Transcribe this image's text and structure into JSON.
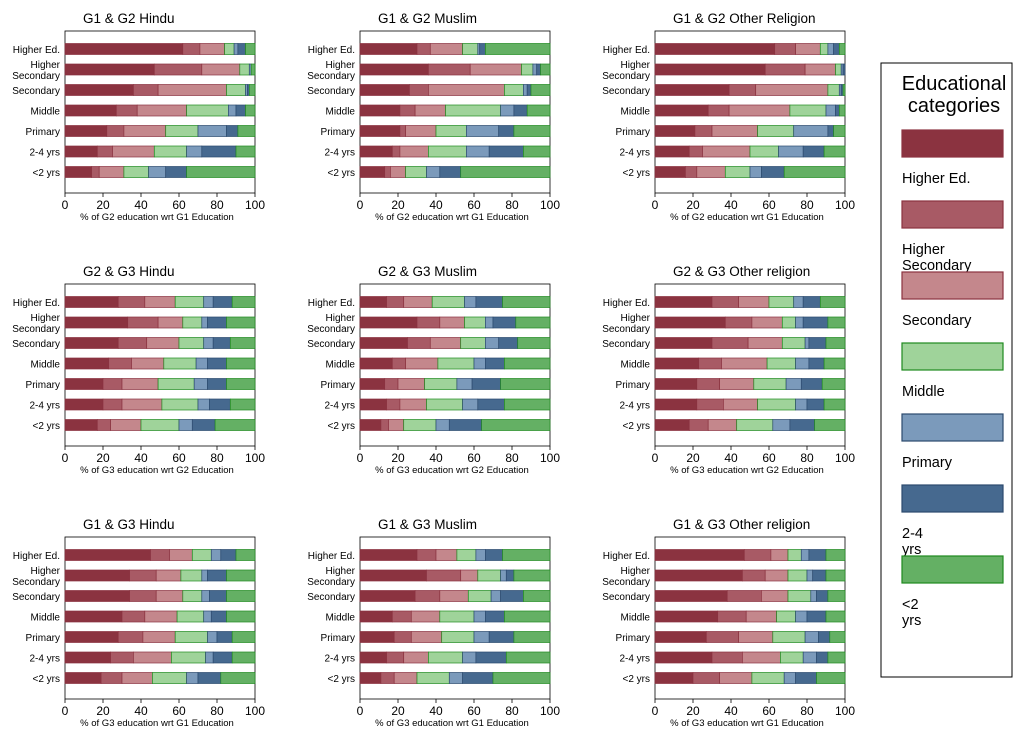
{
  "legend": {
    "title": "Educational\ncategories",
    "items": [
      {
        "label": "Higher Ed.",
        "color": "#8b3340",
        "stroke": "#8b3340"
      },
      {
        "label": "Higher\nSecondary",
        "color": "#a85a65",
        "stroke": "#8b3340"
      },
      {
        "label": "Secondary",
        "color": "#c4878c",
        "stroke": "#8b3340"
      },
      {
        "label": "Middle",
        "color": "#9fd39a",
        "stroke": "#1e8a1e"
      },
      {
        "label": "Primary",
        "color": "#7b9abb",
        "stroke": "#2c4a6e"
      },
      {
        "label": "2-4\nyrs",
        "color": "#46698f",
        "stroke": "#2c4a6e"
      },
      {
        "label": "<2\nyrs",
        "color": "#64b064",
        "stroke": "#1e8a1e"
      }
    ]
  },
  "chart_data": [
    {
      "type": "bar",
      "title": "G1 & G2 Hindu",
      "xlabel": "% of G2 education wrt G1 Education",
      "xlim": [
        0,
        100
      ],
      "xticks": [
        0,
        20,
        40,
        60,
        80,
        100
      ],
      "categories": [
        "Higher Ed.",
        "Higher\nSecondary",
        "Secondary",
        "Middle",
        "Primary",
        "2-4 yrs",
        "<2 yrs"
      ],
      "rows": [
        [
          62,
          9,
          13,
          5,
          2,
          4,
          5
        ],
        [
          47,
          25,
          20,
          5,
          1,
          0,
          2
        ],
        [
          36,
          13,
          36,
          10,
          1,
          1,
          3
        ],
        [
          27,
          11,
          26,
          22,
          4,
          5,
          5
        ],
        [
          22,
          9,
          22,
          17,
          15,
          6,
          9
        ],
        [
          17,
          8,
          22,
          17,
          8,
          18,
          10
        ],
        [
          14,
          4,
          13,
          13,
          9,
          11,
          36
        ]
      ]
    },
    {
      "type": "bar",
      "title": "G1 & G2 Muslim",
      "xlabel": "% of G2 education wrt G1 Education",
      "xlim": [
        0,
        100
      ],
      "xticks": [
        0,
        20,
        40,
        60,
        80,
        100
      ],
      "categories": [
        "Higher Ed.",
        "Higher\nSecondary",
        "Secondary",
        "Middle",
        "Primary",
        "2-4 yrs",
        "<2 yrs"
      ],
      "rows": [
        [
          30,
          7,
          17,
          8,
          1,
          3,
          34
        ],
        [
          36,
          22,
          27,
          6,
          2,
          2,
          5
        ],
        [
          26,
          10,
          40,
          10,
          2,
          2,
          10
        ],
        [
          21,
          8,
          16,
          29,
          7,
          7,
          12
        ],
        [
          21,
          3,
          16,
          16,
          17,
          8,
          19
        ],
        [
          17,
          4,
          15,
          20,
          12,
          18,
          14
        ],
        [
          13,
          3,
          8,
          11,
          7,
          11,
          47
        ]
      ]
    },
    {
      "type": "bar",
      "title": "G1 & G2 Other Religion",
      "xlabel": "% of G2 education wrt G1 Education",
      "xlim": [
        0,
        100
      ],
      "xticks": [
        0,
        20,
        40,
        60,
        80,
        100
      ],
      "categories": [
        "Higher Ed.",
        "Higher\nSecondary",
        "Secondary",
        "Middle",
        "Primary",
        "2-4 yrs",
        "<2 yrs"
      ],
      "rows": [
        [
          63,
          11,
          13,
          4,
          3,
          3,
          3
        ],
        [
          58,
          21,
          16,
          3,
          1,
          1,
          0
        ],
        [
          39,
          14,
          38,
          6,
          1,
          1,
          1
        ],
        [
          28,
          11,
          32,
          19,
          5,
          2,
          3
        ],
        [
          21,
          9,
          24,
          19,
          18,
          3,
          6
        ],
        [
          18,
          7,
          25,
          15,
          13,
          11,
          11
        ],
        [
          16,
          6,
          15,
          13,
          6,
          12,
          32
        ]
      ]
    },
    {
      "type": "bar",
      "title": "G2 & G3 Hindu",
      "xlabel": "% of G3 education wrt G2 Education",
      "xlim": [
        0,
        100
      ],
      "xticks": [
        0,
        20,
        40,
        60,
        80,
        100
      ],
      "categories": [
        "Higher Ed.",
        "Higher\nSecondary",
        "Secondary",
        "Middle",
        "Primary",
        "2-4 yrs",
        "<2 yrs"
      ],
      "rows": [
        [
          28,
          14,
          16,
          15,
          5,
          10,
          12
        ],
        [
          33,
          16,
          13,
          10,
          3,
          10,
          15
        ],
        [
          28,
          15,
          17,
          13,
          5,
          9,
          13
        ],
        [
          23,
          12,
          17,
          17,
          6,
          10,
          15
        ],
        [
          20,
          10,
          19,
          19,
          7,
          10,
          15
        ],
        [
          20,
          10,
          21,
          19,
          6,
          11,
          13
        ],
        [
          17,
          7,
          16,
          20,
          7,
          12,
          21
        ]
      ]
    },
    {
      "type": "bar",
      "title": "G2 & G3 Muslim",
      "xlabel": "% of G3 education wrt G2 Education",
      "xlim": [
        0,
        100
      ],
      "xticks": [
        0,
        20,
        40,
        60,
        80,
        100
      ],
      "categories": [
        "Higher Ed.",
        "Higher\nSecondary",
        "Secondary",
        "Middle",
        "Primary",
        "2-4 yrs",
        "<2 yrs"
      ],
      "rows": [
        [
          14,
          9,
          15,
          17,
          6,
          14,
          25
        ],
        [
          30,
          12,
          13,
          11,
          4,
          12,
          18
        ],
        [
          25,
          12,
          16,
          13,
          7,
          10,
          17
        ],
        [
          17,
          7,
          17,
          19,
          6,
          10,
          24
        ],
        [
          13,
          7,
          14,
          17,
          8,
          15,
          26
        ],
        [
          14,
          7,
          14,
          19,
          8,
          14,
          24
        ],
        [
          11,
          4,
          8,
          17,
          7,
          17,
          36
        ]
      ]
    },
    {
      "type": "bar",
      "title": "G2 & G3 Other religion",
      "xlabel": "% of G3 education wrt G2 Education",
      "xlim": [
        0,
        100
      ],
      "xticks": [
        0,
        20,
        40,
        60,
        80,
        100
      ],
      "categories": [
        "Higher Ed.",
        "Higher\nSecondary",
        "Secondary",
        "Middle",
        "Primary",
        "2-4 yrs",
        "<2 yrs"
      ],
      "rows": [
        [
          30,
          14,
          16,
          13,
          5,
          9,
          13
        ],
        [
          37,
          14,
          16,
          7,
          4,
          13,
          9
        ],
        [
          30,
          19,
          18,
          12,
          2,
          9,
          10
        ],
        [
          23,
          12,
          24,
          15,
          7,
          8,
          11
        ],
        [
          22,
          12,
          18,
          17,
          8,
          11,
          12
        ],
        [
          22,
          14,
          18,
          20,
          6,
          9,
          11
        ],
        [
          18,
          10,
          15,
          19,
          9,
          13,
          16
        ]
      ]
    },
    {
      "type": "bar",
      "title": "G1 & G3 Hindu",
      "xlabel": "% of G3 education wrt G1 Education",
      "xlim": [
        0,
        100
      ],
      "xticks": [
        0,
        20,
        40,
        60,
        80,
        100
      ],
      "categories": [
        "Higher Ed.",
        "Higher\nSecondary",
        "Secondary",
        "Middle",
        "Primary",
        "2-4 yrs",
        "<2 yrs"
      ],
      "rows": [
        [
          45,
          10,
          12,
          10,
          5,
          8,
          10
        ],
        [
          34,
          14,
          13,
          11,
          3,
          10,
          15
        ],
        [
          34,
          14,
          14,
          10,
          4,
          9,
          15
        ],
        [
          30,
          12,
          17,
          14,
          4,
          8,
          15
        ],
        [
          28,
          13,
          17,
          17,
          5,
          8,
          12
        ],
        [
          24,
          12,
          20,
          18,
          4,
          10,
          12
        ],
        [
          19,
          11,
          16,
          18,
          6,
          12,
          18
        ]
      ]
    },
    {
      "type": "bar",
      "title": "G1 & G3 Muslim",
      "xlabel": "% of G3 education wrt G1 Education",
      "xlim": [
        0,
        100
      ],
      "xticks": [
        0,
        20,
        40,
        60,
        80,
        100
      ],
      "categories": [
        "Higher Ed.",
        "Higher\nSecondary",
        "Secondary",
        "Middle",
        "Primary",
        "2-4 yrs",
        "<2 yrs"
      ],
      "rows": [
        [
          30,
          10,
          11,
          10,
          5,
          9,
          25
        ],
        [
          35,
          18,
          9,
          12,
          3,
          4,
          19
        ],
        [
          29,
          13,
          15,
          12,
          5,
          12,
          14
        ],
        [
          17,
          10,
          15,
          18,
          6,
          10,
          24
        ],
        [
          18,
          9,
          16,
          17,
          8,
          13,
          19
        ],
        [
          14,
          9,
          13,
          18,
          7,
          16,
          23
        ],
        [
          11,
          7,
          12,
          17,
          7,
          16,
          30
        ]
      ]
    },
    {
      "type": "bar",
      "title": "G1 & G3 Other religion",
      "xlabel": "% of G3 education wrt G1 Education",
      "xlim": [
        0,
        100
      ],
      "xticks": [
        0,
        20,
        40,
        60,
        80,
        100
      ],
      "categories": [
        "Higher Ed.",
        "Higher\nSecondary",
        "Secondary",
        "Middle",
        "Primary",
        "2-4 yrs",
        "<2 yrs"
      ],
      "rows": [
        [
          47,
          14,
          9,
          7,
          4,
          9,
          10
        ],
        [
          46,
          12,
          12,
          10,
          3,
          7,
          10
        ],
        [
          38,
          18,
          14,
          12,
          3,
          6,
          9
        ],
        [
          33,
          15,
          16,
          10,
          6,
          10,
          10
        ],
        [
          27,
          17,
          18,
          17,
          7,
          6,
          8
        ],
        [
          30,
          16,
          20,
          12,
          7,
          6,
          9
        ],
        [
          20,
          14,
          17,
          17,
          6,
          11,
          15
        ]
      ]
    }
  ]
}
